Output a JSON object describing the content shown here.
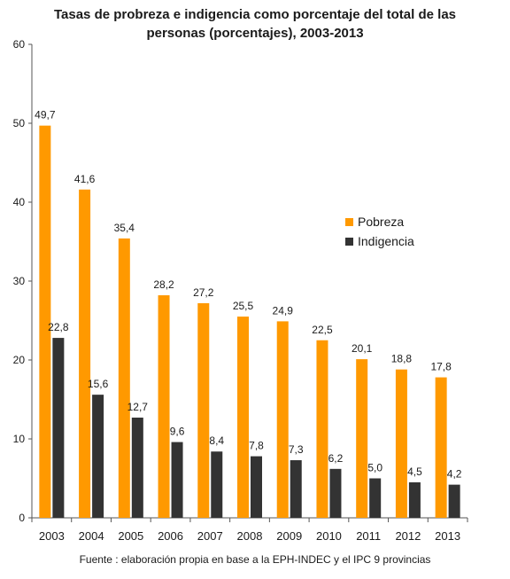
{
  "chart_data": {
    "type": "bar",
    "title": [
      "Tasas de probreza e indigencia como porcentaje del total de las",
      "personas (porcentajes), 2003-2013"
    ],
    "categories": [
      "2003",
      "2004",
      "2005",
      "2006",
      "2007",
      "2008",
      "2009",
      "2010",
      "2011",
      "2012",
      "2013"
    ],
    "series": [
      {
        "name": "Pobreza",
        "color": "#FF9900",
        "values": [
          49.7,
          41.6,
          35.4,
          28.2,
          27.2,
          25.5,
          24.9,
          22.5,
          20.1,
          18.8,
          17.8
        ],
        "labels": [
          "49,7",
          "41,6",
          "35,4",
          "28,2",
          "27,2",
          "25,5",
          "24,9",
          "22,5",
          "20,1",
          "18,8",
          "17,8"
        ]
      },
      {
        "name": "Indigencia",
        "color": "#333333",
        "values": [
          22.8,
          15.6,
          12.7,
          9.6,
          8.4,
          7.8,
          7.3,
          6.2,
          5.0,
          4.5,
          4.2
        ],
        "labels": [
          "22,8",
          "15,6",
          "12,7",
          "9,6",
          "8,4",
          "7,8",
          "7,3",
          "6,2",
          "5,0",
          "4,5",
          "4,2"
        ]
      }
    ],
    "yticks": [
      0,
      10,
      20,
      30,
      40,
      50,
      60
    ],
    "ylim": [
      0,
      60
    ],
    "grid": false,
    "legend_position": "right",
    "source": "Fuente : elaboración propia en base a la EPH-INDEC y el IPC 9 provincias"
  }
}
